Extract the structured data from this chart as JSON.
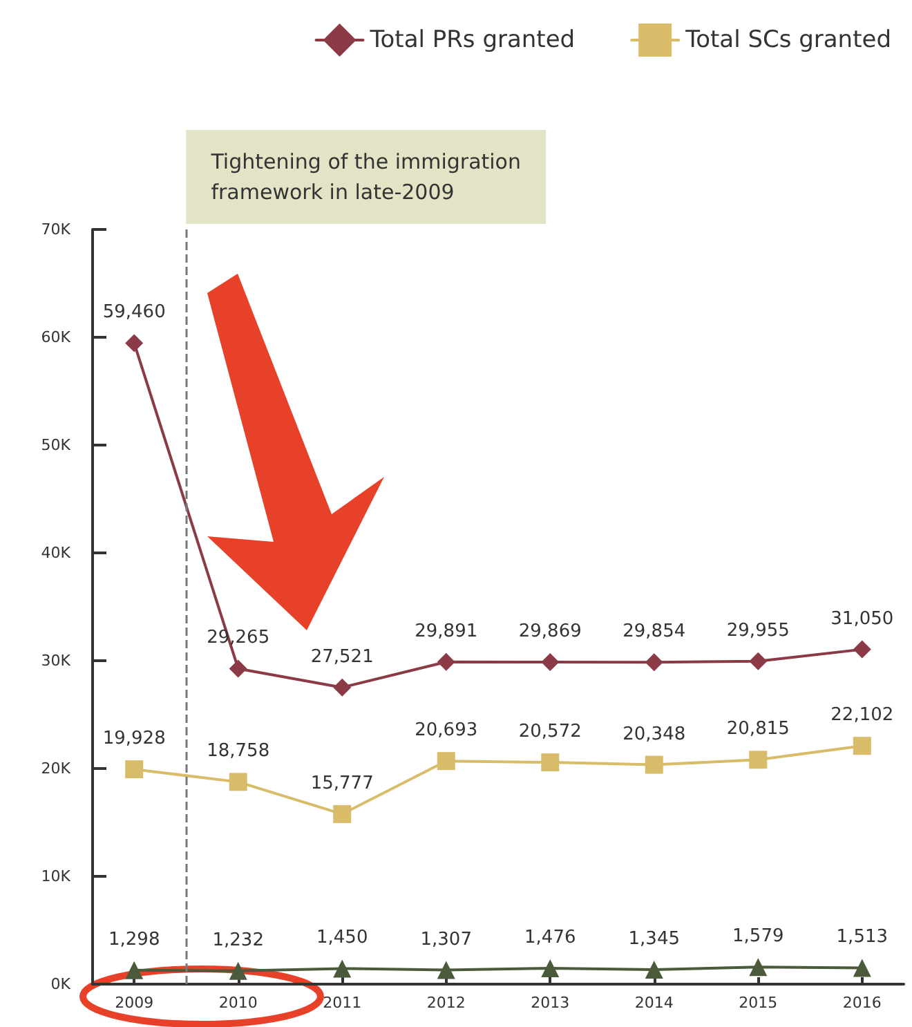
{
  "chart_data": {
    "type": "line",
    "x": [
      2009,
      2010,
      2011,
      2012,
      2013,
      2014,
      2015,
      2016
    ],
    "series": [
      {
        "name": "Total PRs granted",
        "color": "#8b3a46",
        "marker": "diamond",
        "values": [
          59460,
          29265,
          27521,
          29891,
          29869,
          29854,
          29955,
          31050
        ],
        "value_labels": [
          "59,460",
          "29,265",
          "27,521",
          "29,891",
          "29,869",
          "29,854",
          "29,955",
          "31,050"
        ]
      },
      {
        "name": "Total SCs granted",
        "color": "#d9bc6a",
        "marker": "square",
        "values": [
          19928,
          18758,
          15777,
          20693,
          20572,
          20348,
          20815,
          22102
        ],
        "value_labels": [
          "19,928",
          "18,758",
          "15,777",
          "20,693",
          "20,572",
          "20,348",
          "20,815",
          "22,102"
        ]
      },
      {
        "color": "#4a5a3a",
        "marker": "triangle",
        "values": [
          1298,
          1232,
          1450,
          1307,
          1476,
          1345,
          1579,
          1513
        ],
        "value_labels": [
          "1,298",
          "1,232",
          "1,450",
          "1,307",
          "1,476",
          "1,345",
          "1,579",
          "1,513"
        ]
      }
    ],
    "xlim": [
      2008.6,
      2016.4
    ],
    "xticks": [
      2009,
      2010,
      2011,
      2012,
      2013,
      2014,
      2015,
      2016
    ],
    "ylim": [
      0,
      70000
    ],
    "yticks": [
      {
        "value": 0,
        "label": "0K"
      },
      {
        "value": 10000,
        "label": "10K"
      },
      {
        "value": 20000,
        "label": "20K"
      },
      {
        "value": 30000,
        "label": "30K"
      },
      {
        "value": 40000,
        "label": "40K"
      },
      {
        "value": 50000,
        "label": "50K"
      },
      {
        "value": 60000,
        "label": "60K"
      },
      {
        "value": 70000,
        "label": "70K"
      }
    ],
    "ref_lines": [
      {
        "axis": "x",
        "value": 2009.5,
        "label": "Tightening of the immigration\nframework in late-2009",
        "color": "#777777",
        "line_style": "dashed"
      }
    ],
    "legend": "top right",
    "grid": false
  }
}
